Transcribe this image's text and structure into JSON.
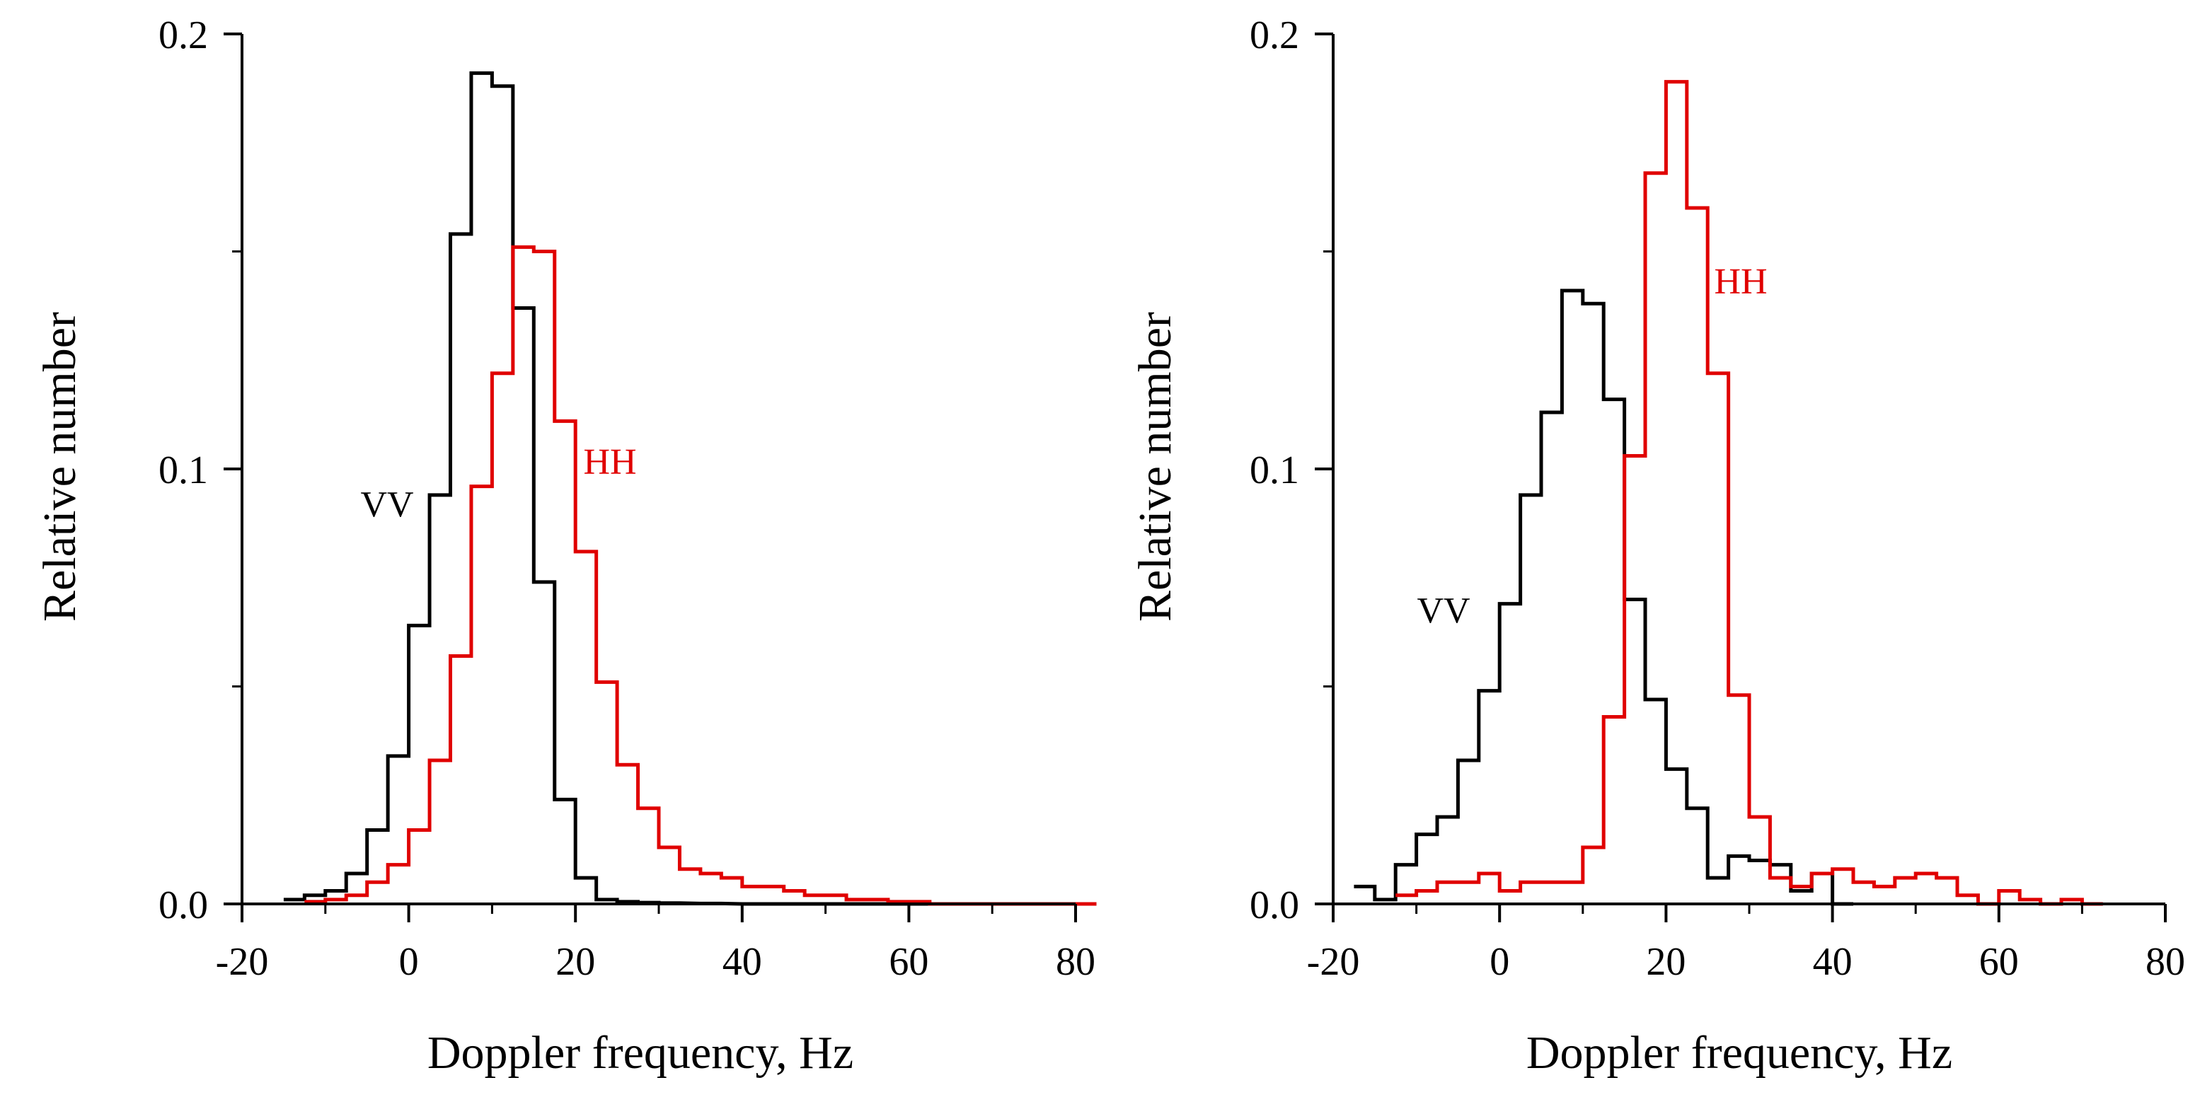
{
  "chart_data": [
    {
      "type": "line",
      "step": true,
      "xlabel": "Doppler frequency, Hz",
      "ylabel": "Relative number",
      "xlim": [
        -20,
        80
      ],
      "ylim": [
        0,
        0.2
      ],
      "xticks": [
        -20,
        0,
        20,
        40,
        60,
        80
      ],
      "xtick_labels": [
        "-20",
        "0",
        "20",
        "40",
        "60",
        "80"
      ],
      "yticks": [
        0.0,
        0.1,
        0.2
      ],
      "ytick_labels": [
        "0.0",
        "0.1",
        "0.2"
      ],
      "grid": false,
      "series": [
        {
          "name": "VV",
          "color": "#000000",
          "x": [
            -15,
            -12.5,
            -10,
            -7.5,
            -5,
            -2.5,
            0,
            2.5,
            5,
            7.5,
            10,
            12.5,
            15,
            17.5,
            20,
            22.5,
            25,
            27.5,
            30,
            35,
            40,
            50,
            60,
            80
          ],
          "values": [
            0.001,
            0.002,
            0.003,
            0.007,
            0.017,
            0.034,
            0.064,
            0.094,
            0.154,
            0.191,
            0.188,
            0.137,
            0.074,
            0.024,
            0.006,
            0.001,
            0.0005,
            0.0003,
            0.0002,
            0.0001,
            0,
            0,
            0,
            0
          ]
        },
        {
          "name": "HH",
          "color": "#e00000",
          "x": [
            -12.5,
            -10,
            -7.5,
            -5,
            -2.5,
            0,
            2.5,
            5,
            7.5,
            10,
            12.5,
            15,
            17.5,
            20,
            22.5,
            25,
            27.5,
            30,
            32.5,
            35,
            37.5,
            40,
            42.5,
            45,
            47.5,
            50,
            52.5,
            55,
            57.5,
            60,
            62.5,
            65,
            67.5,
            70,
            80
          ],
          "values": [
            0.0005,
            0.001,
            0.002,
            0.005,
            0.009,
            0.017,
            0.033,
            0.057,
            0.096,
            0.122,
            0.151,
            0.15,
            0.111,
            0.081,
            0.051,
            0.032,
            0.022,
            0.013,
            0.008,
            0.007,
            0.006,
            0.004,
            0.004,
            0.003,
            0.002,
            0.002,
            0.001,
            0.001,
            0.0005,
            0.0005,
            0,
            0,
            0,
            0,
            0
          ]
        }
      ],
      "annotations": [
        {
          "text": "VV",
          "color": "#000000"
        },
        {
          "text": "HH",
          "color": "#e00000"
        }
      ]
    },
    {
      "type": "line",
      "step": true,
      "xlabel": "Doppler frequency, Hz",
      "ylabel": "Relative number",
      "xlim": [
        -20,
        80
      ],
      "ylim": [
        0,
        0.2
      ],
      "xticks": [
        -20,
        0,
        20,
        40,
        60,
        80
      ],
      "xtick_labels": [
        "-20",
        "0",
        "20",
        "40",
        "60",
        "80"
      ],
      "yticks": [
        0.0,
        0.1,
        0.2
      ],
      "ytick_labels": [
        "0.0",
        "0.1",
        "0.2"
      ],
      "grid": false,
      "series": [
        {
          "name": "VV",
          "color": "#000000",
          "x": [
            -17.5,
            -15,
            -12.5,
            -10,
            -7.5,
            -5,
            -2.5,
            0,
            2.5,
            5,
            7.5,
            10,
            12.5,
            15,
            17.5,
            20,
            22.5,
            25,
            27.5,
            30,
            32.5,
            35,
            37.5,
            40
          ],
          "values": [
            0.004,
            0.001,
            0.009,
            0.016,
            0.02,
            0.033,
            0.049,
            0.069,
            0.094,
            0.113,
            0.141,
            0.138,
            0.116,
            0.07,
            0.047,
            0.031,
            0.022,
            0.006,
            0.011,
            0.01,
            0.009,
            0.003,
            0.007,
            0
          ]
        },
        {
          "name": "HH",
          "color": "#e00000",
          "x": [
            -12.5,
            -10,
            -7.5,
            -5,
            -2.5,
            0,
            2.5,
            5,
            7.5,
            10,
            12.5,
            15,
            17.5,
            20,
            22.5,
            25,
            27.5,
            30,
            32.5,
            35,
            37.5,
            40,
            42.5,
            45,
            47.5,
            50,
            52.5,
            55,
            57.5,
            60,
            62.5,
            65,
            67.5,
            70
          ],
          "values": [
            0.002,
            0.003,
            0.005,
            0.005,
            0.007,
            0.003,
            0.005,
            0.005,
            0.005,
            0.013,
            0.043,
            0.103,
            0.168,
            0.189,
            0.16,
            0.122,
            0.048,
            0.02,
            0.006,
            0.004,
            0.007,
            0.008,
            0.005,
            0.004,
            0.006,
            0.007,
            0.006,
            0.002,
            0.0,
            0.003,
            0.001,
            0.0,
            0.001,
            0
          ]
        }
      ],
      "annotations": [
        {
          "text": "VV",
          "color": "#000000"
        },
        {
          "text": "HH",
          "color": "#e00000"
        }
      ]
    }
  ]
}
